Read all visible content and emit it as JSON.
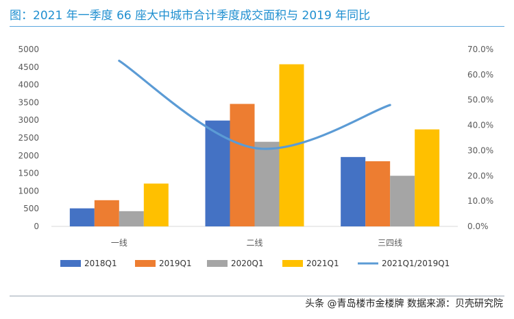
{
  "title": "图：2021 年一季度 66 座大中城市合计季度成交面积与 2019 年同比",
  "watermark": "头条 @青岛楼市金楼牌 数据来源：贝壳研究院",
  "chart_data": {
    "type": "bar",
    "title": "图：2021 年一季度 66 座大中城市合计季度成交面积与 2019 年同比",
    "categories": [
      "一线",
      "二线",
      "三四线"
    ],
    "series": [
      {
        "name": "2018Q1",
        "type": "bar",
        "axis": "left",
        "color": "#4472c4",
        "values": [
          510,
          2990,
          1960
        ]
      },
      {
        "name": "2019Q1",
        "type": "bar",
        "axis": "left",
        "color": "#ed7d31",
        "values": [
          740,
          3460,
          1840
        ]
      },
      {
        "name": "2020Q1",
        "type": "bar",
        "axis": "left",
        "color": "#a5a5a5",
        "values": [
          430,
          2390,
          1430
        ]
      },
      {
        "name": "2021Q1",
        "type": "bar",
        "axis": "left",
        "color": "#ffc000",
        "values": [
          1210,
          4580,
          2740
        ]
      },
      {
        "name": "2021Q1/2019Q1",
        "type": "line",
        "axis": "right",
        "color": "#5b9bd5",
        "values": [
          0.655,
          0.31,
          0.48
        ]
      }
    ],
    "y_left": {
      "min": 0,
      "max": 5000,
      "ticks": [
        "0",
        "500",
        "1000",
        "1500",
        "2000",
        "2500",
        "3000",
        "3500",
        "4000",
        "4500",
        "5000"
      ]
    },
    "y_right": {
      "min": 0,
      "max": 0.7,
      "ticks": [
        "0.0%",
        "10.0%",
        "20.0%",
        "30.0%",
        "40.0%",
        "50.0%",
        "60.0%",
        "70.0%"
      ]
    },
    "legend_position": "bottom",
    "grid": false
  }
}
